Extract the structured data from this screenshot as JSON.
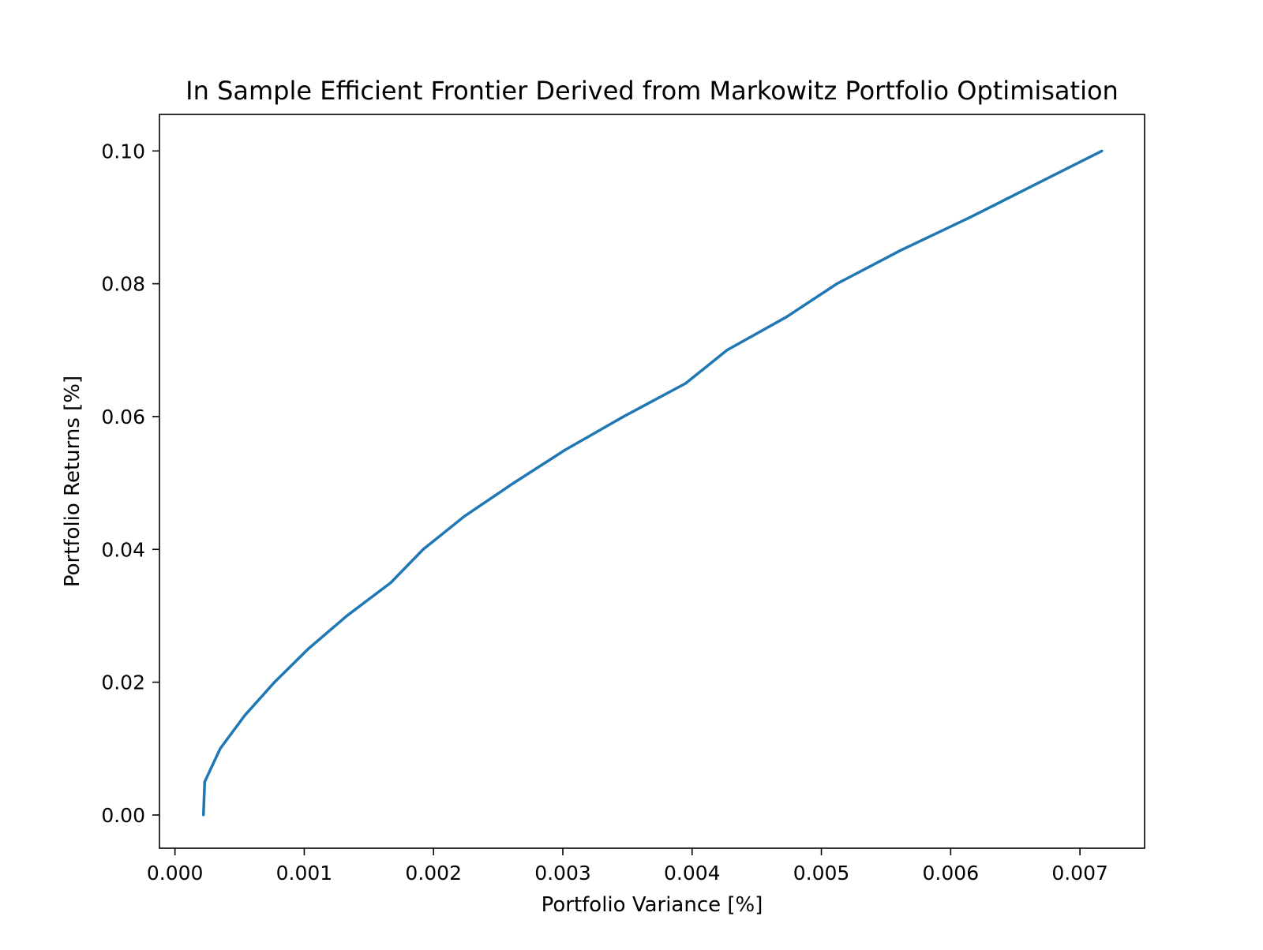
{
  "chart_data": {
    "type": "line",
    "title": "In Sample Efficient Frontier Derived from Markowitz Portfolio Optimisation",
    "xlabel": "Portfolio Variance [%]",
    "ylabel": "Portfolio Returns [%]",
    "xlim": [
      -0.00012,
      0.0075
    ],
    "ylim": [
      -0.005,
      0.1055
    ],
    "xticks": [
      0.0,
      0.001,
      0.002,
      0.003,
      0.004,
      0.005,
      0.006,
      0.007
    ],
    "xtick_labels": [
      "0.000",
      "0.001",
      "0.002",
      "0.003",
      "0.004",
      "0.005",
      "0.006",
      "0.007"
    ],
    "yticks": [
      0.0,
      0.02,
      0.04,
      0.06,
      0.08,
      0.1
    ],
    "ytick_labels": [
      "0.00",
      "0.02",
      "0.04",
      "0.06",
      "0.08",
      "0.10"
    ],
    "grid": false,
    "series": [
      {
        "color": "#1f77b4",
        "x": [
          0.00022,
          0.00023,
          0.00035,
          0.00054,
          0.00077,
          0.00103,
          0.00133,
          0.00167,
          0.00192,
          0.00224,
          0.00262,
          0.00302,
          0.00347,
          0.00395,
          0.00427,
          0.00473,
          0.00512,
          0.00561,
          0.00615,
          0.00666,
          0.00717
        ],
        "y": [
          0.0,
          0.005,
          0.01,
          0.015,
          0.02,
          0.025,
          0.03,
          0.035,
          0.04,
          0.045,
          0.05,
          0.055,
          0.06,
          0.065,
          0.07,
          0.075,
          0.08,
          0.085,
          0.09,
          0.095,
          0.1
        ]
      }
    ]
  }
}
